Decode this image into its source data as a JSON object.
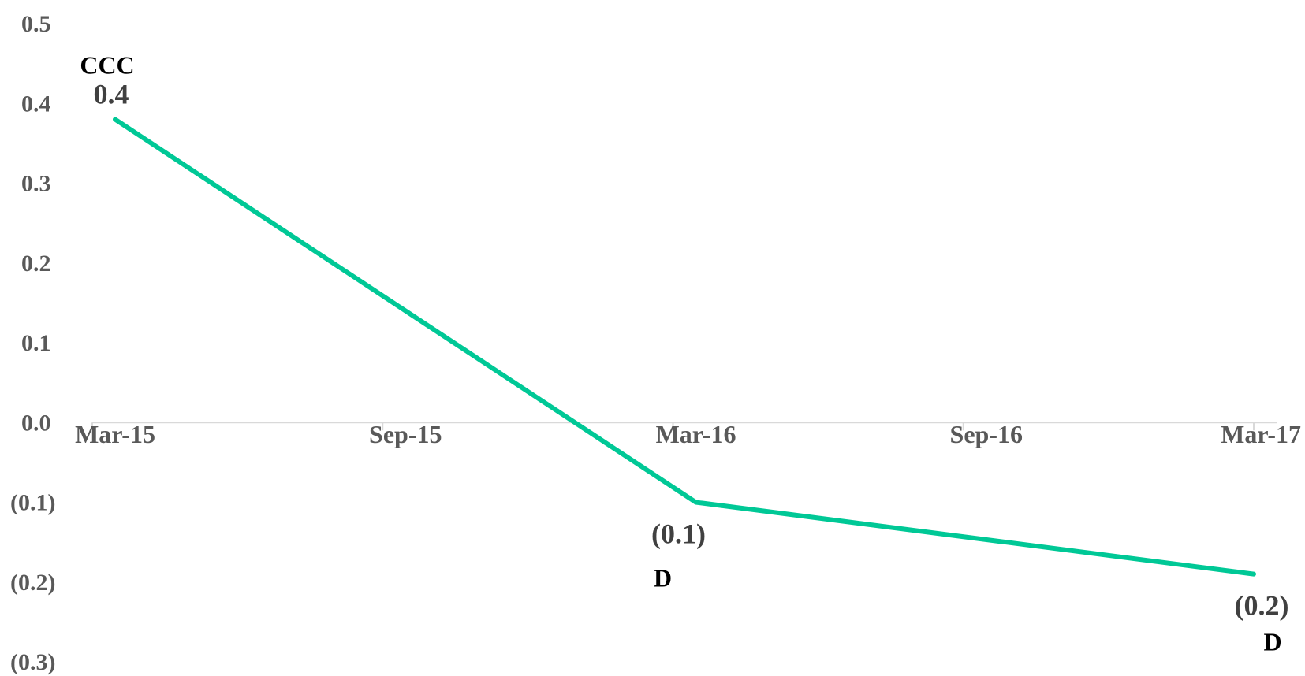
{
  "chart_data": {
    "type": "line",
    "x": [
      "2015-03",
      "2016-03",
      "2017-03"
    ],
    "series": [
      {
        "values": [
          0.38,
          -0.1,
          -0.19
        ],
        "color": "#00C896"
      }
    ],
    "x_ticks": [
      "Mar-15",
      "Sep-15",
      "Mar-16",
      "Sep-16",
      "Mar-17"
    ],
    "y_ticks": [
      "0.5",
      "0.4",
      "0.3",
      "0.2",
      "0.1",
      "0.0",
      "(0.1)",
      "(0.2)",
      "(0.3)"
    ],
    "y_tick_values": [
      0.5,
      0.4,
      0.3,
      0.2,
      0.1,
      0.0,
      -0.1,
      -0.2,
      -0.3
    ],
    "ylim": [
      -0.3,
      0.5
    ],
    "data_labels": [
      "0.4",
      "(0.1)",
      "(0.2)"
    ],
    "point_annotations": [
      "CCC",
      "D",
      "D"
    ],
    "grid": false,
    "axis_color": "#D9D9D9"
  }
}
